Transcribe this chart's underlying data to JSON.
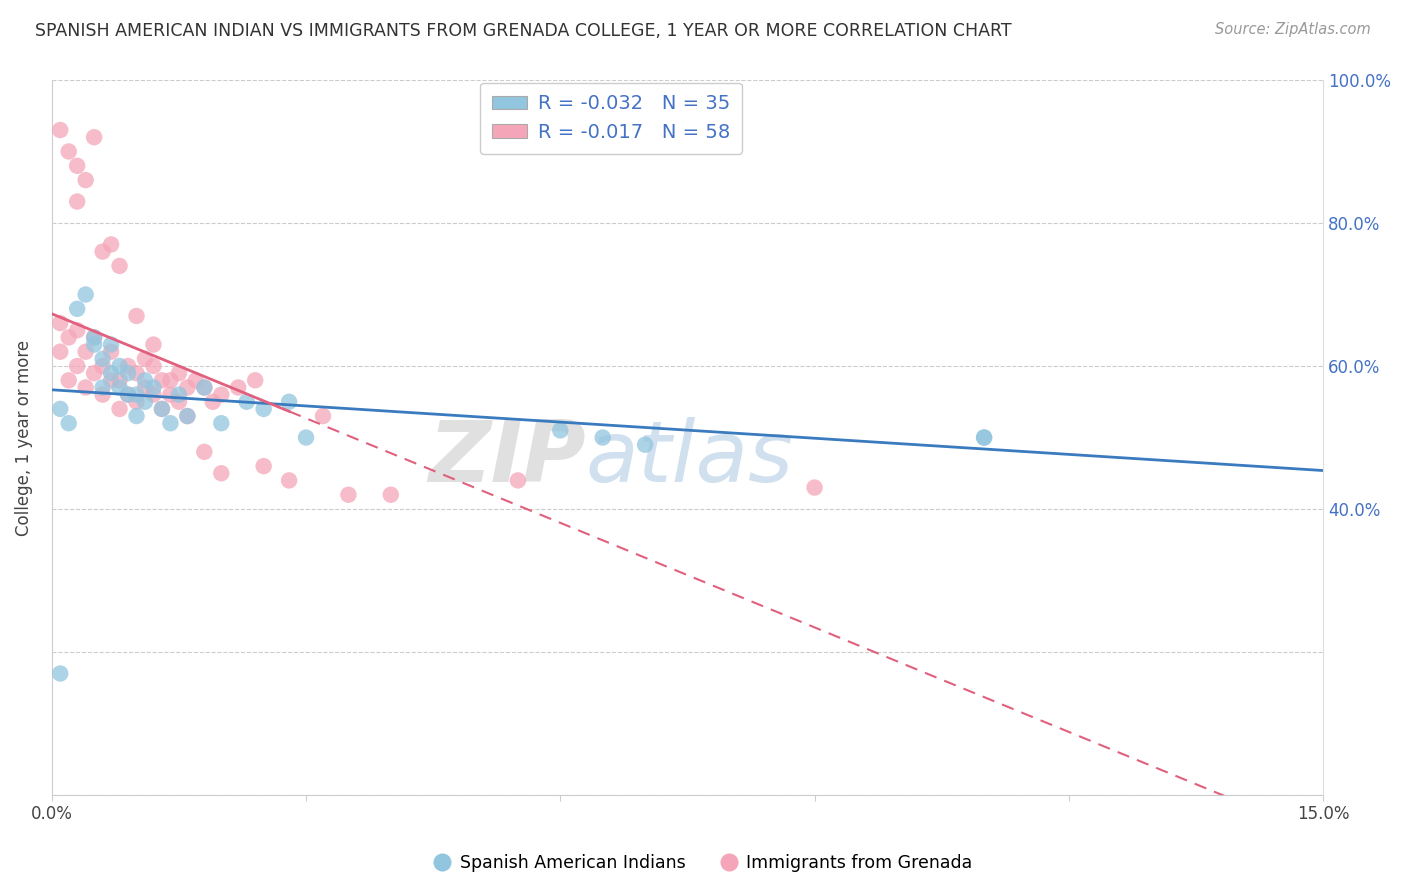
{
  "title": "SPANISH AMERICAN INDIAN VS IMMIGRANTS FROM GRENADA COLLEGE, 1 YEAR OR MORE CORRELATION CHART",
  "source": "Source: ZipAtlas.com",
  "ylabel": "College, 1 year or more",
  "xlim": [
    0.0,
    0.15
  ],
  "ylim": [
    0.0,
    1.0
  ],
  "blue_R": -0.032,
  "blue_N": 35,
  "pink_R": -0.017,
  "pink_N": 58,
  "blue_color": "#92c5de",
  "pink_color": "#f4a6b8",
  "blue_line_color": "#3a7bbf",
  "pink_line_color": "#e0607e",
  "watermark_zip": "ZIP",
  "watermark_atlas": "atlas",
  "legend_label_blue": "Spanish American Indians",
  "legend_label_pink": "Immigrants from Grenada",
  "blue_x": [
    0.001,
    0.002,
    0.003,
    0.004,
    0.005,
    0.005,
    0.006,
    0.006,
    0.007,
    0.007,
    0.008,
    0.008,
    0.009,
    0.009,
    0.01,
    0.01,
    0.011,
    0.011,
    0.012,
    0.013,
    0.014,
    0.015,
    0.016,
    0.018,
    0.02,
    0.023,
    0.025,
    0.028,
    0.03,
    0.06,
    0.065,
    0.07,
    0.11,
    0.11,
    0.001
  ],
  "blue_y": [
    0.54,
    0.52,
    0.68,
    0.7,
    0.63,
    0.64,
    0.57,
    0.61,
    0.59,
    0.63,
    0.57,
    0.6,
    0.56,
    0.59,
    0.53,
    0.56,
    0.55,
    0.58,
    0.57,
    0.54,
    0.52,
    0.56,
    0.53,
    0.57,
    0.52,
    0.55,
    0.54,
    0.55,
    0.5,
    0.51,
    0.5,
    0.49,
    0.5,
    0.5,
    0.17
  ],
  "pink_x": [
    0.001,
    0.001,
    0.002,
    0.002,
    0.003,
    0.003,
    0.004,
    0.004,
    0.005,
    0.005,
    0.006,
    0.006,
    0.007,
    0.007,
    0.008,
    0.008,
    0.009,
    0.009,
    0.01,
    0.01,
    0.011,
    0.011,
    0.012,
    0.012,
    0.013,
    0.013,
    0.014,
    0.015,
    0.015,
    0.016,
    0.017,
    0.018,
    0.019,
    0.02,
    0.022,
    0.024,
    0.003,
    0.004,
    0.006,
    0.007,
    0.008,
    0.01,
    0.012,
    0.014,
    0.016,
    0.018,
    0.02,
    0.025,
    0.028,
    0.032,
    0.035,
    0.04,
    0.055,
    0.09,
    0.001,
    0.002,
    0.003,
    0.005
  ],
  "pink_y": [
    0.62,
    0.66,
    0.58,
    0.64,
    0.6,
    0.65,
    0.57,
    0.62,
    0.59,
    0.64,
    0.56,
    0.6,
    0.58,
    0.62,
    0.54,
    0.58,
    0.56,
    0.6,
    0.55,
    0.59,
    0.57,
    0.61,
    0.56,
    0.6,
    0.54,
    0.58,
    0.56,
    0.55,
    0.59,
    0.57,
    0.58,
    0.57,
    0.55,
    0.56,
    0.57,
    0.58,
    0.83,
    0.86,
    0.76,
    0.77,
    0.74,
    0.67,
    0.63,
    0.58,
    0.53,
    0.48,
    0.45,
    0.46,
    0.44,
    0.53,
    0.42,
    0.42,
    0.44,
    0.43,
    0.93,
    0.9,
    0.88,
    0.92
  ]
}
